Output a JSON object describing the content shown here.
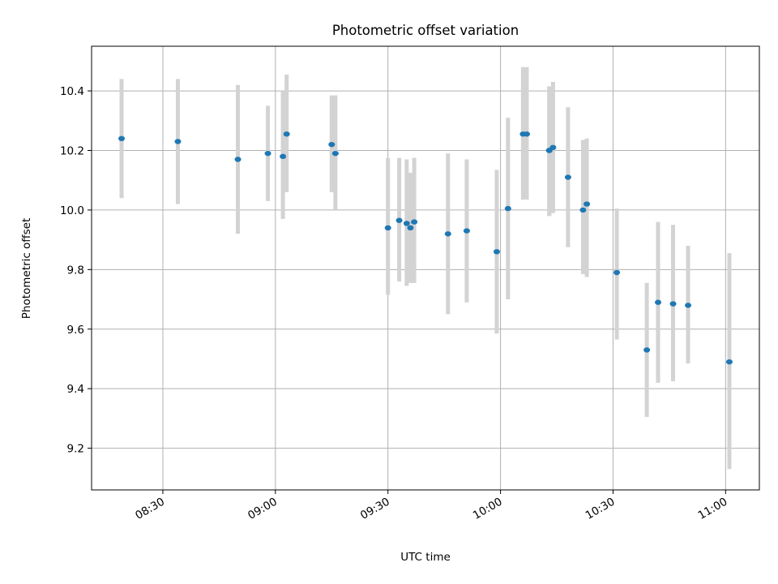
{
  "chart_data": {
    "type": "scatter",
    "title": "Photometric offset variation",
    "xlabel": "UTC time",
    "ylabel": "Photometric offset",
    "xlim": [
      "08:11",
      "11:09"
    ],
    "ylim": [
      9.06,
      10.55
    ],
    "xticks": [
      "08:30",
      "09:00",
      "09:30",
      "10:00",
      "10:30",
      "11:00"
    ],
    "yticks": [
      9.2,
      9.4,
      9.6,
      9.8,
      10.0,
      10.2,
      10.4
    ],
    "grid": true,
    "colors": {
      "point": "#1f77b4",
      "errorbar": "#d3d3d3"
    },
    "series": [
      {
        "x": [
          "08:19",
          "08:34",
          "08:50",
          "08:58",
          "09:02",
          "09:03",
          "09:15",
          "09:16",
          "09:30",
          "09:33",
          "09:35",
          "09:36",
          "09:37",
          "09:46",
          "09:51",
          "09:59",
          "10:02",
          "10:06",
          "10:07",
          "10:13",
          "10:13",
          "10:14",
          "10:18",
          "10:22",
          "10:23",
          "10:31",
          "10:39",
          "10:42",
          "10:46",
          "10:50",
          "11:01"
        ],
        "y": [
          10.24,
          10.23,
          10.17,
          10.19,
          10.18,
          10.255,
          10.22,
          10.19,
          9.94,
          9.965,
          9.955,
          9.94,
          9.96,
          9.92,
          9.93,
          9.86,
          10.005,
          10.255,
          10.255,
          10.2,
          10.2,
          10.21,
          10.11,
          10.0,
          10.02,
          9.79,
          9.53,
          9.69,
          9.685,
          9.68,
          9.49
        ],
        "yerr_low": [
          10.04,
          10.02,
          9.92,
          10.03,
          9.97,
          10.06,
          10.06,
          10.0,
          9.715,
          9.76,
          9.745,
          9.755,
          9.755,
          9.65,
          9.69,
          9.585,
          9.7,
          10.035,
          10.035,
          9.98,
          9.98,
          9.99,
          9.875,
          9.785,
          9.775,
          9.565,
          9.305,
          9.42,
          9.425,
          9.485,
          9.13
        ],
        "yerr_high": [
          10.44,
          10.44,
          10.42,
          10.35,
          10.4,
          10.455,
          10.385,
          10.385,
          10.175,
          10.175,
          10.17,
          10.125,
          10.175,
          10.19,
          10.17,
          10.135,
          10.31,
          10.48,
          10.48,
          10.415,
          10.415,
          10.43,
          10.345,
          10.235,
          10.24,
          10.005,
          9.755,
          9.96,
          9.95,
          9.88,
          9.855
        ]
      }
    ]
  }
}
